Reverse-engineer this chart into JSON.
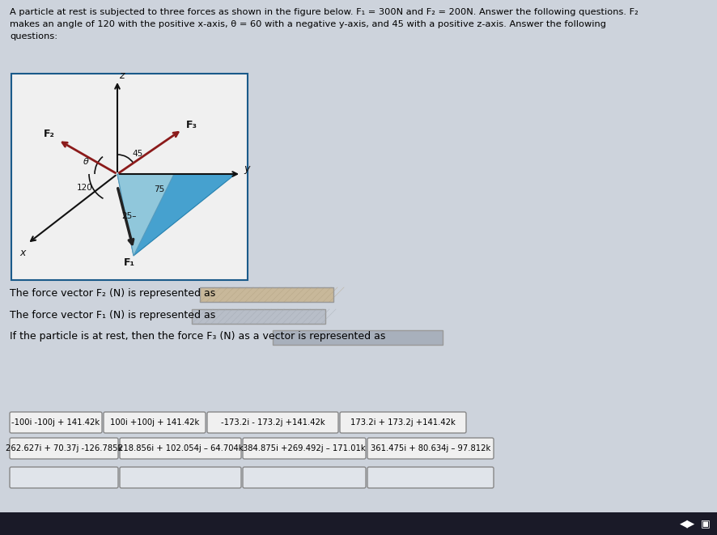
{
  "bg_color": "#cdd3dc",
  "title_line1": "A particle at rest is subjected to three forces as shown in the figure below. F₁ = 300N and F₂ = 200N. Answer the following questions. F₂",
  "title_line2": "makes an angle of 120 with the positive x-axis, θ = 60 with a negative y-axis, and 45 with a positive z-axis. Answer the following",
  "title_line3": "questions:",
  "q1": "The force vector F₂ (N) is represented as",
  "q2": "The force vector F₁ (N) is represented as",
  "q3": "If the particle is at rest, then the force F₃ (N) as a vector is represented as",
  "answers_row1": [
    "-100i -100j + 141.42k",
    "100i +100j + 141.42k",
    "-173.2i - 173.2j +141.42k",
    "173.2i + 173.2j +141.42k"
  ],
  "answers_row2": [
    "262.627i + 70.37j -126.785k",
    "218.856i + 102.054j – 64.704k",
    "384.875i +269.492j – 171.01k",
    "361.475i + 80.634j – 97.812k"
  ],
  "diag_bg": "#e8e8e8",
  "diag_border": "#1a5a8a",
  "tri_dark": "#3399cc",
  "tri_light": "#99ccdd",
  "arrow_dark": "#8b1a1a",
  "axis_color": "#111111",
  "figure_width": 8.87,
  "figure_height": 6.61
}
